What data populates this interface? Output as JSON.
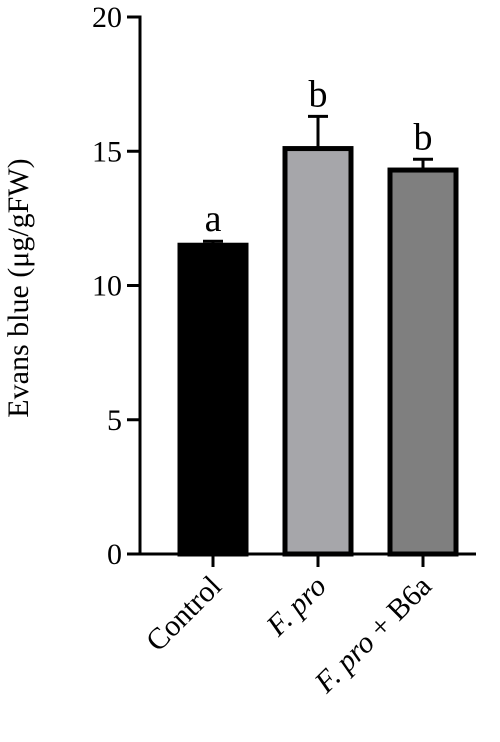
{
  "chart_data": {
    "type": "bar",
    "title": "",
    "xlabel": "",
    "ylabel": "Evans blue (μg/gFW)",
    "ylim": [
      0,
      20
    ],
    "yticks": [
      0,
      5,
      10,
      15,
      20
    ],
    "grid": false,
    "categories": [
      "Control",
      "F. pro",
      "F. pro + B6a"
    ],
    "category_parts": [
      [
        {
          "text": "Control",
          "italic": false
        }
      ],
      [
        {
          "text": "F. pro",
          "italic": true
        }
      ],
      [
        {
          "text": "F. pro",
          "italic": true
        },
        {
          "text": " + B6a",
          "italic": false
        }
      ]
    ],
    "values": [
      11.5,
      15.1,
      14.3
    ],
    "errors": [
      0.15,
      1.2,
      0.4
    ],
    "significance": [
      "a",
      "b",
      "b"
    ],
    "colors": [
      "#000000",
      "#a6a6aa",
      "#7f7f7f"
    ]
  }
}
